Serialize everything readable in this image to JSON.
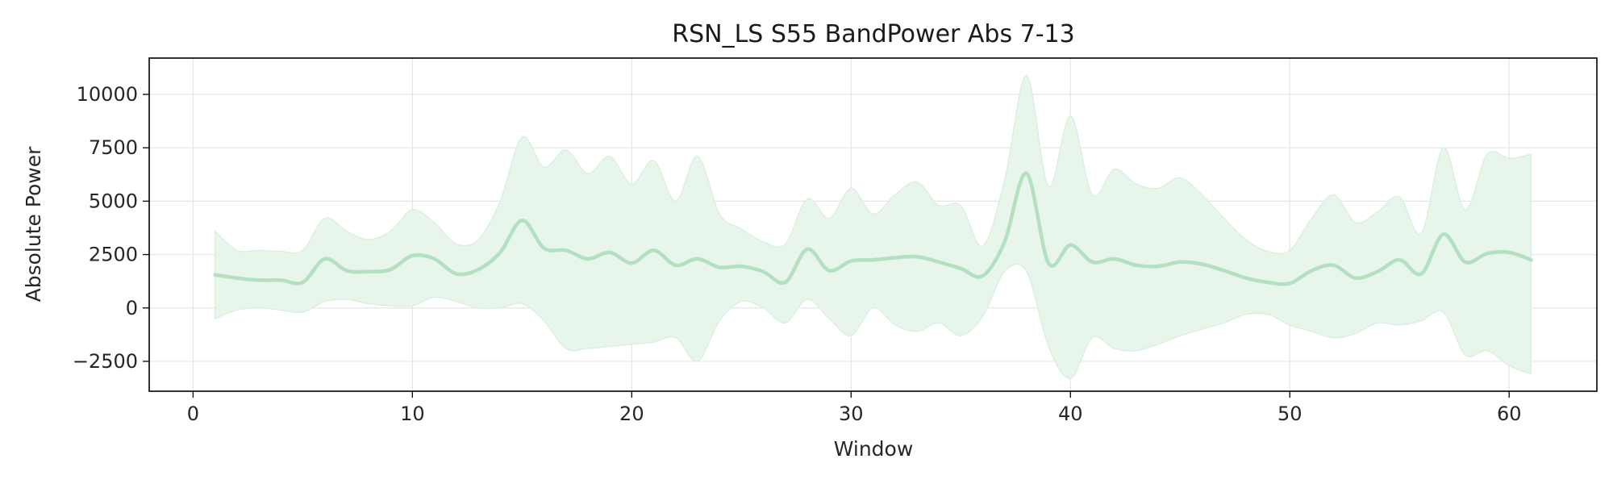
{
  "chart_data": {
    "type": "line",
    "title": "RSN_LS S55 BandPower Abs 7-13",
    "xlabel": "Window",
    "ylabel": "Absolute Power",
    "xlim": [
      -2,
      64
    ],
    "ylim": [
      -3900,
      11700
    ],
    "xticks": [
      0,
      10,
      20,
      30,
      40,
      50,
      60
    ],
    "yticks": [
      -2500,
      0,
      2500,
      5000,
      7500,
      10000
    ],
    "xtick_labels": [
      "0",
      "10",
      "20",
      "30",
      "40",
      "50",
      "60"
    ],
    "ytick_labels": [
      "−2500",
      "0",
      "2500",
      "5000",
      "7500",
      "10000"
    ],
    "grid": true,
    "legend": "none",
    "colors": {
      "line": "#b3e0c0",
      "band": "#e7f5ea",
      "band_edge": "#d8eedd",
      "grid": "#e6e6e6",
      "frame": "#000000"
    },
    "series": [
      {
        "x": [
          1,
          2,
          3,
          4,
          5,
          6,
          7,
          8,
          9,
          10,
          11,
          12,
          13,
          14,
          15,
          16,
          17,
          18,
          19,
          20,
          21,
          22,
          23,
          24,
          25,
          26,
          27,
          28,
          29,
          30,
          31,
          32,
          33,
          34,
          35,
          36,
          37,
          38,
          39,
          40,
          41,
          42,
          43,
          44,
          45,
          46,
          47,
          48,
          49,
          50,
          51,
          52,
          53,
          54,
          55,
          56,
          57,
          58,
          59,
          60,
          61
        ],
        "mean": [
          1550,
          1400,
          1300,
          1300,
          1200,
          2300,
          1750,
          1700,
          1800,
          2450,
          2300,
          1600,
          1800,
          2600,
          4100,
          2800,
          2700,
          2300,
          2600,
          2100,
          2700,
          2000,
          2300,
          1900,
          1950,
          1700,
          1200,
          2750,
          1750,
          2200,
          2250,
          2350,
          2400,
          2150,
          1850,
          1500,
          3100,
          6300,
          2100,
          2950,
          2150,
          2300,
          2000,
          1950,
          2150,
          2050,
          1750,
          1400,
          1200,
          1150,
          1750,
          2000,
          1400,
          1700,
          2250,
          1600,
          3450,
          2150,
          2550,
          2600,
          2250
        ],
        "upper": [
          3600,
          2700,
          2700,
          2650,
          2700,
          4200,
          3600,
          3200,
          3600,
          4600,
          4000,
          3000,
          3200,
          5000,
          8000,
          6600,
          7400,
          6300,
          7100,
          5800,
          6900,
          5000,
          7100,
          4400,
          3700,
          3100,
          3000,
          5100,
          4200,
          5600,
          4400,
          5300,
          5900,
          4800,
          4800,
          2900,
          6000,
          10900,
          5700,
          9000,
          5300,
          6500,
          5800,
          5600,
          6100,
          5300,
          4200,
          3200,
          2650,
          2700,
          4200,
          5300,
          4000,
          4500,
          5200,
          3500,
          7500,
          4600,
          7200,
          7000,
          7200
        ],
        "lower": [
          -500,
          -100,
          0,
          -100,
          -200,
          300,
          400,
          200,
          100,
          100,
          500,
          300,
          0,
          0,
          200,
          -600,
          -1900,
          -1900,
          -1800,
          -1700,
          -1600,
          -1400,
          -2500,
          -600,
          300,
          0,
          -700,
          400,
          -500,
          -1300,
          0,
          -800,
          -1100,
          -700,
          -1300,
          -400,
          1700,
          1700,
          -1800,
          -3300,
          -1400,
          -1900,
          -2000,
          -1700,
          -1300,
          -1000,
          -700,
          -300,
          -300,
          -800,
          -1100,
          -1400,
          -1200,
          -700,
          -800,
          -600,
          -200,
          -2200,
          -2000,
          -2700,
          -3100
        ]
      }
    ]
  }
}
